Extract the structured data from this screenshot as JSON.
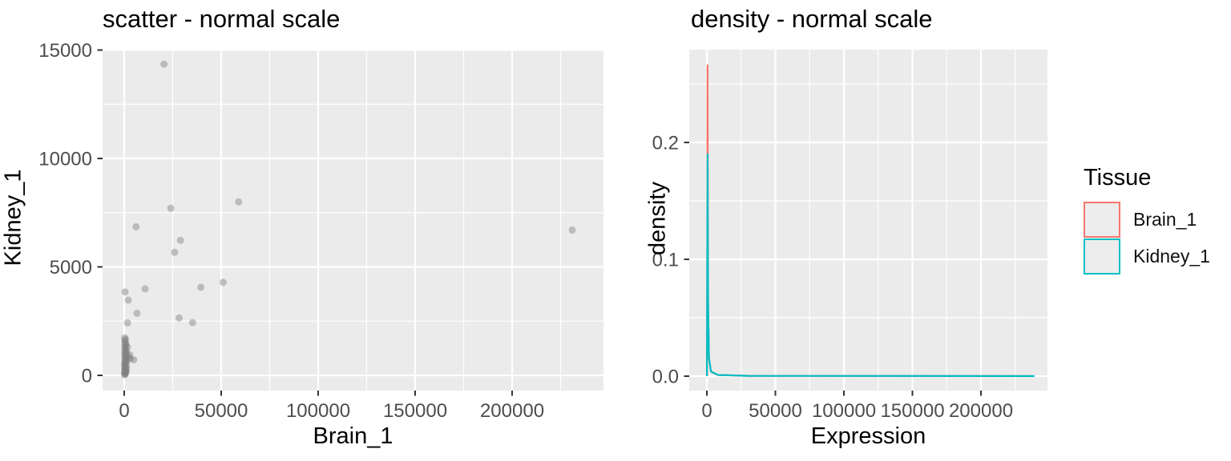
{
  "style": {
    "background": "#ffffff",
    "panel_bg": "#ebebeb",
    "grid_color": "#ffffff",
    "tick_mark_color": "#333333",
    "tick_label_color": "#4d4d4d",
    "title_color": "#000000",
    "point_color": "#808080",
    "point_opacity": 0.45,
    "legend_key_fill": "#ededed"
  },
  "chart_data": [
    {
      "type": "scatter",
      "title": "scatter - normal scale",
      "xlabel": "Brain_1",
      "ylabel": "Kidney_1",
      "x_axis": {
        "tick_values": [
          0,
          50000,
          100000,
          150000,
          200000
        ],
        "tick_labels": [
          "0",
          "50000",
          "100000",
          "150000",
          "200000"
        ],
        "minor_values": [
          25000,
          75000,
          125000,
          175000,
          225000
        ],
        "range": [
          -11000,
          247000
        ]
      },
      "y_axis": {
        "tick_values": [
          0,
          5000,
          10000,
          15000
        ],
        "tick_labels": [
          "0",
          "5000",
          "10000",
          "15000"
        ],
        "minor_values": [
          2500,
          7500,
          12500
        ],
        "range": [
          -700,
          15100
        ]
      },
      "grid": true,
      "points": [
        [
          200,
          30
        ],
        [
          420,
          55
        ],
        [
          650,
          85
        ],
        [
          150,
          115
        ],
        [
          800,
          140
        ],
        [
          320,
          170
        ],
        [
          980,
          200
        ],
        [
          460,
          230
        ],
        [
          610,
          260
        ],
        [
          260,
          300
        ],
        [
          1150,
          330
        ],
        [
          390,
          370
        ],
        [
          820,
          410
        ],
        [
          560,
          450
        ],
        [
          190,
          490
        ],
        [
          960,
          530
        ],
        [
          430,
          570
        ],
        [
          700,
          610
        ],
        [
          310,
          650
        ],
        [
          1250,
          690
        ],
        [
          520,
          740
        ],
        [
          860,
          790
        ],
        [
          360,
          840
        ],
        [
          620,
          890
        ],
        [
          1420,
          940
        ],
        [
          260,
          990
        ],
        [
          760,
          1040
        ],
        [
          470,
          1090
        ],
        [
          1020,
          1140
        ],
        [
          560,
          1190
        ],
        [
          310,
          1250
        ],
        [
          1650,
          1300
        ],
        [
          720,
          1350
        ],
        [
          410,
          1400
        ],
        [
          920,
          1450
        ],
        [
          510,
          1520
        ],
        [
          2500,
          820
        ],
        [
          3200,
          760
        ],
        [
          2800,
          950
        ],
        [
          360,
          1590
        ],
        [
          660,
          1660
        ],
        [
          230,
          1730
        ],
        [
          4900,
          720
        ],
        [
          1700,
          2420
        ],
        [
          2100,
          3470
        ],
        [
          400,
          3850
        ],
        [
          6600,
          2860
        ],
        [
          10800,
          3990
        ],
        [
          6100,
          6850
        ],
        [
          20500,
          14350
        ],
        [
          24000,
          7700
        ],
        [
          26000,
          5670
        ],
        [
          29000,
          6230
        ],
        [
          28300,
          2650
        ],
        [
          35300,
          2430
        ],
        [
          39500,
          4060
        ],
        [
          51000,
          4290
        ],
        [
          59000,
          8000
        ],
        [
          231000,
          6700
        ]
      ]
    },
    {
      "type": "density",
      "title": "density - normal scale",
      "xlabel": "Expression",
      "ylabel": "density",
      "x_axis": {
        "tick_values": [
          0,
          50000,
          100000,
          150000,
          200000
        ],
        "tick_labels": [
          "0",
          "50000",
          "100000",
          "150000",
          "200000"
        ],
        "minor_values": [
          25000,
          75000,
          125000,
          175000,
          225000
        ],
        "range": [
          -12800,
          250000
        ]
      },
      "y_axis": {
        "tick_values": [
          0,
          0.1,
          0.2
        ],
        "tick_labels": [
          "0.0",
          "0.1",
          "0.2"
        ],
        "minor_values": [
          0.05,
          0.15,
          0.25
        ],
        "range": [
          -0.012,
          0.279
        ]
      },
      "grid": true,
      "series": [
        {
          "name": "Brain_1",
          "color": "#F8766D",
          "points": [
            [
              50,
              0
            ],
            [
              500,
              0.266
            ],
            [
              900,
              0.06
            ],
            [
              1500,
              0.015
            ],
            [
              3000,
              0.004
            ],
            [
              8000,
              0.001
            ],
            [
              30000,
              0.0003
            ],
            [
              235500,
              0.0001
            ],
            [
              236000,
              0
            ]
          ]
        },
        {
          "name": "Kidney_1",
          "color": "#00BFC4",
          "points": [
            [
              50,
              0
            ],
            [
              500,
              0.19
            ],
            [
              900,
              0.065
            ],
            [
              1500,
              0.016
            ],
            [
              3000,
              0.004
            ],
            [
              8000,
              0.001
            ],
            [
              30000,
              0.0003
            ],
            [
              238500,
              0.0001
            ],
            [
              239000,
              0
            ]
          ]
        }
      ],
      "legend": {
        "title": "Tissue",
        "position": "right",
        "entries": [
          {
            "label": "Brain_1",
            "color": "#F8766D"
          },
          {
            "label": "Kidney_1",
            "color": "#00BFC4"
          }
        ]
      }
    }
  ]
}
